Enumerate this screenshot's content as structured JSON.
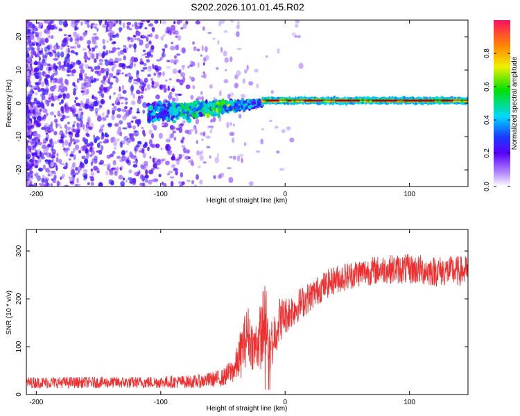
{
  "title": "S202.2026.101.01.45.R02",
  "colors": {
    "snr_line": "#ee3030",
    "axis": "#000000",
    "ridge": "#e21a1a"
  },
  "chart_data": [
    {
      "type": "heatmap",
      "name": "spectrogram",
      "xlabel": "Height of straight line (km)",
      "ylabel": "Frequency (Hz)",
      "xlim": [
        -208,
        147
      ],
      "ylim": [
        -25,
        25
      ],
      "x_ticks": [
        -200,
        -100,
        0,
        100
      ],
      "x_tick_labels": [
        "-200",
        "-100",
        "0",
        "100"
      ],
      "y_ticks": [
        20,
        10,
        0,
        -10,
        -20
      ],
      "y_tick_labels": [
        "20",
        "10",
        "0",
        "-10",
        "-20"
      ],
      "stable_frequency_hz": 0.8,
      "stable_from_km": -18,
      "colorbar": {
        "label": "Normalized spectral amplitude",
        "range": [
          0,
          1
        ],
        "ticks": [
          0.0,
          0.2,
          0.4,
          0.6,
          0.8
        ],
        "tick_labels": [
          "0.0",
          "0.2",
          "0.4",
          "0.6",
          "0.8"
        ]
      }
    },
    {
      "type": "line",
      "name": "snr",
      "xlabel": "Height of straight line (km)",
      "ylabel": "SNR (10 * v/v)",
      "xlim": [
        -208,
        147
      ],
      "ylim": [
        0,
        345
      ],
      "x_ticks": [
        -200,
        -100,
        0,
        100
      ],
      "x_tick_labels": [
        "-200",
        "-100",
        "0",
        "100"
      ],
      "y_ticks": [
        0,
        100,
        200,
        300
      ],
      "y_tick_labels": [
        "0",
        "100",
        "200",
        "300"
      ],
      "envelope": {
        "x": [
          -208,
          -120,
          -70,
          -50,
          -40,
          -35,
          -30,
          -25,
          -20,
          -16,
          -12,
          -5,
          0,
          5,
          10,
          20,
          30,
          40,
          60,
          80,
          100,
          120,
          140,
          147
        ],
        "mean": [
          25,
          25,
          27,
          35,
          55,
          90,
          130,
          95,
          120,
          160,
          100,
          155,
          165,
          175,
          185,
          205,
          225,
          240,
          255,
          262,
          262,
          258,
          258,
          258
        ],
        "spread": [
          12,
          12,
          14,
          18,
          30,
          55,
          60,
          50,
          70,
          90,
          60,
          50,
          40,
          38,
          35,
          32,
          30,
          30,
          30,
          30,
          32,
          32,
          32,
          32
        ]
      }
    }
  ]
}
